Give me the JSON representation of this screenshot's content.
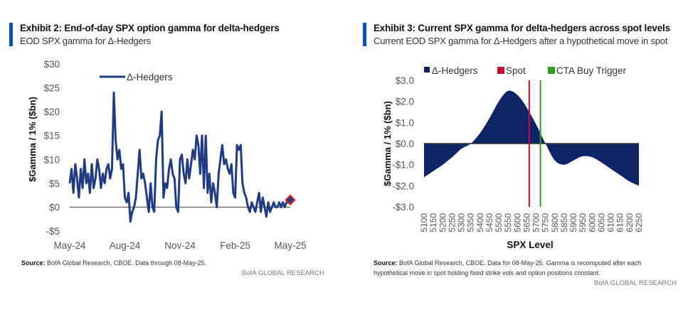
{
  "left": {
    "title": "Exhibit 2: End-of-day SPX option gamma for delta-hedgers",
    "subtitle": "EOD SPX gamma for Δ-Hedgers",
    "source_label": "Source:",
    "source_text": " BofA Global Research, CBOE. Data through 08-May-25.",
    "brand": "BofA GLOBAL RESEARCH"
  },
  "right": {
    "title": "Exhibit 3: Current SPX gamma for delta-hedgers across spot levels",
    "subtitle": "Current EOD SPX gamma for Δ-Hedgers after a hypothetical move in spot",
    "source_label": "Source:",
    "source_text_1": " BofA Global Research, CBOE. Data for 08-May-25. Gamma is recomputed after each",
    "source_text_2": "hypothetical move in spot holding fixed strike vols and option positions constant.",
    "brand": "BofA GLOBAL RESEARCH"
  },
  "chart_data": [
    {
      "type": "line",
      "title": "Exhibit 2: End-of-day SPX option gamma for delta-hedgers",
      "subtitle": "EOD SPX gamma for Δ-Hedgers",
      "xlabel": "",
      "ylabel": "$Gamma / 1% ($bn)",
      "ylim": [
        -5,
        30
      ],
      "yticks": [
        -5,
        0,
        5,
        10,
        15,
        20,
        25,
        30
      ],
      "ytick_labels": [
        "-$5",
        "$0",
        "$5",
        "$10",
        "$15",
        "$20",
        "$25",
        "$30"
      ],
      "xtick_labels": [
        "May-24",
        "Aug-24",
        "Nov-24",
        "Feb-25",
        "May-25"
      ],
      "xtick_positions_months": [
        0,
        3,
        6,
        9,
        12
      ],
      "legend": {
        "position": "top-left",
        "entries": [
          "Δ-Hedgers"
        ]
      },
      "series": [
        {
          "name": "Δ-Hedgers",
          "color": "#1f3b84",
          "x_months": [
            0,
            0.1,
            0.2,
            0.3,
            0.4,
            0.5,
            0.6,
            0.7,
            0.8,
            0.9,
            1.0,
            1.1,
            1.2,
            1.3,
            1.4,
            1.5,
            1.6,
            1.7,
            1.8,
            1.9,
            2.0,
            2.1,
            2.2,
            2.3,
            2.4,
            2.5,
            2.6,
            2.7,
            2.8,
            2.9,
            3.0,
            3.1,
            3.2,
            3.3,
            3.4,
            3.5,
            3.6,
            3.7,
            3.8,
            3.9,
            4.0,
            4.1,
            4.2,
            4.3,
            4.4,
            4.5,
            4.6,
            4.7,
            4.8,
            4.9,
            5.0,
            5.1,
            5.2,
            5.3,
            5.4,
            5.5,
            5.6,
            5.7,
            5.8,
            5.9,
            6.0,
            6.1,
            6.2,
            6.3,
            6.4,
            6.5,
            6.6,
            6.7,
            6.8,
            6.9,
            7.0,
            7.1,
            7.2,
            7.3,
            7.4,
            7.5,
            7.6,
            7.7,
            7.8,
            7.9,
            8.0,
            8.1,
            8.2,
            8.3,
            8.4,
            8.5,
            8.6,
            8.7,
            8.8,
            8.9,
            9.0,
            9.1,
            9.2,
            9.3,
            9.4,
            9.5,
            9.6,
            9.7,
            9.8,
            9.9,
            10.0,
            10.1,
            10.2,
            10.3,
            10.4,
            10.5,
            10.6,
            10.7,
            10.8,
            10.9,
            11.0,
            11.1,
            11.2,
            11.3,
            11.4,
            11.5,
            11.6,
            11.7,
            11.8,
            11.9,
            12.0
          ],
          "values": [
            5,
            8,
            3,
            9,
            6,
            2,
            8,
            4,
            10,
            5,
            7,
            3,
            9,
            4,
            6,
            10,
            8,
            4,
            7,
            5,
            8,
            9,
            6,
            8,
            24,
            14,
            10,
            12,
            8,
            9,
            2,
            1,
            3,
            -3,
            -1,
            0,
            2,
            7,
            12,
            6,
            7,
            5,
            2,
            -1,
            5,
            0,
            -1,
            10,
            14,
            15,
            20,
            2,
            5,
            4,
            8,
            10,
            7,
            6,
            0,
            -1,
            10,
            11,
            7,
            5,
            10,
            6,
            9,
            12,
            10,
            15,
            13,
            7,
            15,
            4,
            15,
            3,
            7,
            1,
            5,
            3,
            0,
            7,
            10,
            13,
            9,
            10,
            8,
            7,
            9,
            3,
            2,
            13,
            12,
            13,
            5,
            3,
            2,
            0,
            -1,
            1,
            0,
            -1,
            1,
            3,
            -1,
            2,
            0,
            -2,
            1,
            -1,
            0,
            1,
            0,
            0,
            1,
            0,
            1,
            0,
            1,
            1,
            1.5
          ]
        }
      ],
      "last_point_marker": {
        "x_months": 12,
        "value": 1.5,
        "fill": "#1f3b84",
        "stroke": "#e2231a"
      },
      "zero_line": true,
      "grid": false
    },
    {
      "type": "area",
      "title": "Exhibit 3: Current SPX gamma for delta-hedgers across spot levels",
      "subtitle": "Current EOD SPX gamma for Δ-Hedgers after a hypothetical move in spot",
      "xlabel": "SPX Level",
      "ylabel": "$Gamma / 1% ($bn)",
      "ylim": [
        -3,
        3
      ],
      "yticks": [
        -3,
        -2,
        -1,
        0,
        1,
        2,
        3
      ],
      "ytick_labels": [
        "-$3.0",
        "-$2.0",
        "-$1.0",
        "$0.0",
        "$1.0",
        "$2.0",
        "$3.0"
      ],
      "categories": [
        "5100",
        "5150",
        "5200",
        "5250",
        "5300",
        "5350",
        "5400",
        "5450",
        "5500",
        "5550",
        "5600",
        "5650",
        "5700",
        "5750",
        "5800",
        "5850",
        "5900",
        "5950",
        "6000",
        "6050",
        "6100",
        "6150",
        "6200",
        "6250"
      ],
      "x": [
        5100,
        5150,
        5200,
        5250,
        5300,
        5350,
        5400,
        5450,
        5500,
        5550,
        5600,
        5650,
        5700,
        5750,
        5800,
        5850,
        5900,
        5950,
        6000,
        6050,
        6100,
        6150,
        6200,
        6250
      ],
      "legend": {
        "position": "top",
        "entries": [
          "Δ-Hedgers",
          "Spot",
          "CTA Buy Trigger"
        ]
      },
      "series": [
        {
          "name": "Δ-Hedgers",
          "color": "#0d2466",
          "values": [
            -1.6,
            -1.3,
            -1.0,
            -0.65,
            -0.25,
            0.0,
            0.5,
            1.2,
            2.0,
            2.5,
            2.3,
            1.7,
            0.9,
            0.0,
            -0.8,
            -1.0,
            -0.8,
            -0.6,
            -0.65,
            -0.9,
            -1.2,
            -1.5,
            -1.8,
            -2.0
          ]
        }
      ],
      "vlines": [
        {
          "name": "Spot",
          "x": 5663,
          "color": "#c8102e"
        },
        {
          "name": "CTA Buy Trigger",
          "x": 5723,
          "color": "#2ca01c"
        }
      ],
      "zero_line": true,
      "grid": false
    }
  ]
}
